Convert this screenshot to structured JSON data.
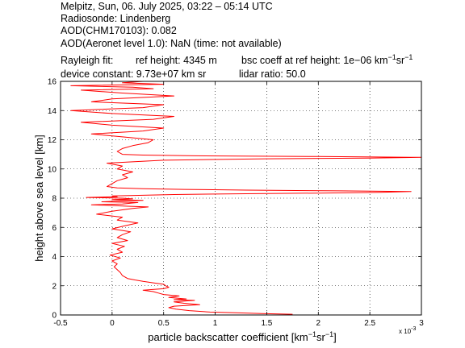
{
  "header": {
    "line1": "Melpitz, Sun, 06. July 2025, 03:22 – 05:14 UTC",
    "line2": "Radiosonde: Lindenberg",
    "line3": "AOD(CHM170103): 0.082",
    "line4": "AOD(Aeronet level 1.0): NaN   (time: not available)",
    "rayleigh_label": "Rayleigh fit:",
    "ref_height": "ref height: 4345 m",
    "bsc_coeff_prefix": "bsc coeff at ref height: 1e−06 km",
    "device_constant": "device constant: 9.73e+07 km sr",
    "lidar_ratio": "lidar ratio: 50.0"
  },
  "chart_data": {
    "type": "line",
    "title": "",
    "xlabel": "particle backscatter coefficient [km⁻¹sr⁻¹]",
    "xlabel_parts": [
      "particle backscatter coefficient [km",
      "−1",
      "sr",
      "−1",
      "]"
    ],
    "ylabel": "height above sea level [km]",
    "x_multiplier_label": "x 10",
    "x_multiplier_exp": "-3",
    "xlim": [
      -0.5,
      3
    ],
    "ylim": [
      0,
      16
    ],
    "xticks": [
      -0.5,
      0,
      0.5,
      1,
      1.5,
      2,
      2.5,
      3
    ],
    "xtick_labels": [
      "-0.5",
      "0",
      "0.5",
      "1",
      "1.5",
      "2",
      "2.5",
      "3"
    ],
    "yticks": [
      0,
      2,
      4,
      6,
      8,
      10,
      12,
      14,
      16
    ],
    "ytick_labels": [
      "0",
      "2",
      "4",
      "6",
      "8",
      "10",
      "12",
      "14",
      "16"
    ],
    "grid": true,
    "line_color": "#ff0000",
    "series": [
      {
        "x": [
          1.75,
          1.45,
          1.2,
          0.95,
          0.75,
          0.62,
          0.55,
          0.6,
          0.85,
          0.7,
          0.6,
          0.8,
          0.6,
          0.72,
          0.55,
          0.65,
          0.5,
          0.45,
          0.4,
          0.3,
          0.5,
          0.55,
          0.52,
          0.5,
          0.4,
          0.3,
          0.22,
          0.15,
          0.1,
          0.08,
          0.05,
          0.02,
          0.05,
          0.0,
          0.08,
          -0.02,
          0.1,
          0.05,
          0.12,
          0.0,
          0.15,
          0.05,
          0.1,
          0.18,
          0.0,
          0.12,
          0.25,
          0.05,
          0.1,
          -0.15,
          0.0,
          0.1,
          0.2,
          0.35,
          0.15,
          0.0,
          -0.2,
          0.1,
          0.25,
          -0.1,
          0.05,
          0.3,
          0.0,
          0.2,
          0.1,
          -0.25,
          0.05,
          0.0,
          0.3,
          0.6,
          1.2,
          2.0,
          2.6,
          2.9,
          2.2,
          1.3,
          0.7,
          0.3,
          0.05,
          -0.05,
          0.0,
          0.05,
          0.15,
          0.1,
          0.2,
          0.05,
          0.1,
          -0.05,
          0.5,
          1.5,
          2.5,
          3.0,
          2.0,
          0.8,
          0.3,
          0.1,
          0.05,
          0.1,
          0.2,
          0.35,
          0.4,
          0.1,
          -0.2,
          0.3,
          0.5,
          0.0,
          -0.3,
          0.4,
          0.6,
          0.0,
          -0.4,
          0.3,
          0.5,
          -0.2,
          0.0,
          0.6,
          0.1,
          -0.3,
          0.4,
          0.2,
          -0.4,
          0.5,
          0.1,
          0.3,
          -0.2,
          0.0
        ],
        "y": [
          0.05,
          0.1,
          0.15,
          0.2,
          0.3,
          0.4,
          0.5,
          0.6,
          0.7,
          0.8,
          0.9,
          1.0,
          1.05,
          1.1,
          1.2,
          1.3,
          1.4,
          1.5,
          1.6,
          1.7,
          1.8,
          1.9,
          2.0,
          2.1,
          2.2,
          2.3,
          2.4,
          2.5,
          2.7,
          2.9,
          3.1,
          3.3,
          3.5,
          3.7,
          3.9,
          4.1,
          4.3,
          4.5,
          4.7,
          4.9,
          5.1,
          5.3,
          5.5,
          5.7,
          5.9,
          6.1,
          6.3,
          6.5,
          6.7,
          6.9,
          7.1,
          7.2,
          7.3,
          7.4,
          7.45,
          7.5,
          7.55,
          7.6,
          7.7,
          7.75,
          7.8,
          7.85,
          7.9,
          7.95,
          8.0,
          8.05,
          8.1,
          8.15,
          8.2,
          8.25,
          8.3,
          8.35,
          8.4,
          8.45,
          8.5,
          8.55,
          8.6,
          8.65,
          8.7,
          8.8,
          9.0,
          9.2,
          9.4,
          9.6,
          9.8,
          10.0,
          10.2,
          10.4,
          10.6,
          10.7,
          10.75,
          10.8,
          10.85,
          10.9,
          10.95,
          11.0,
          11.2,
          11.4,
          11.6,
          11.8,
          12.0,
          12.2,
          12.4,
          12.6,
          12.8,
          13.0,
          13.2,
          13.4,
          13.6,
          13.8,
          14.0,
          14.2,
          14.4,
          14.6,
          14.8,
          15.0,
          15.2,
          15.4,
          15.5,
          15.6,
          15.7,
          15.8,
          15.9,
          16.0,
          16.0,
          16.0
        ]
      }
    ]
  }
}
